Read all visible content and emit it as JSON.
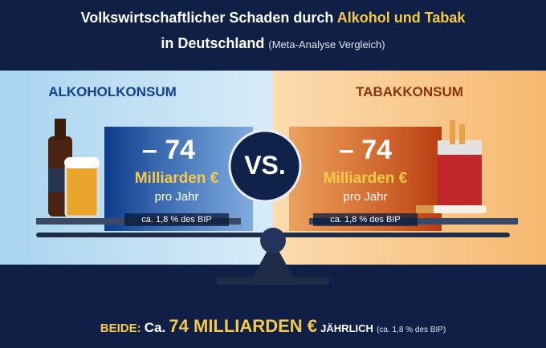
{
  "header": {
    "title_part1": "Volkswirtschaftlicher Schaden durch",
    "title_highlight": "Alkohol und Tabak",
    "title_line2": "in Deutschland",
    "title_note": "(Meta-Analyse Vergleich)"
  },
  "panels": [
    {
      "heading": "ALKOHOLKONSUM",
      "amount": "– 74",
      "unit": "Milliarden €",
      "period": "pro Jahr",
      "share": "ca. 1,8 % des BIP"
    },
    {
      "heading": "TABAKKONSUM",
      "amount": "– 74",
      "unit": "Milliarden €",
      "period": "pro Jahr",
      "share": "ca. 1,8 % des BIP"
    }
  ],
  "versus": "VS.",
  "footer": {
    "label": "BEIDE:",
    "prefix": "Ca.",
    "amount": "74 MILLIARDEN €",
    "period": "JÄHRLICH",
    "note": "(ca. 1,8 % des BIP)"
  }
}
